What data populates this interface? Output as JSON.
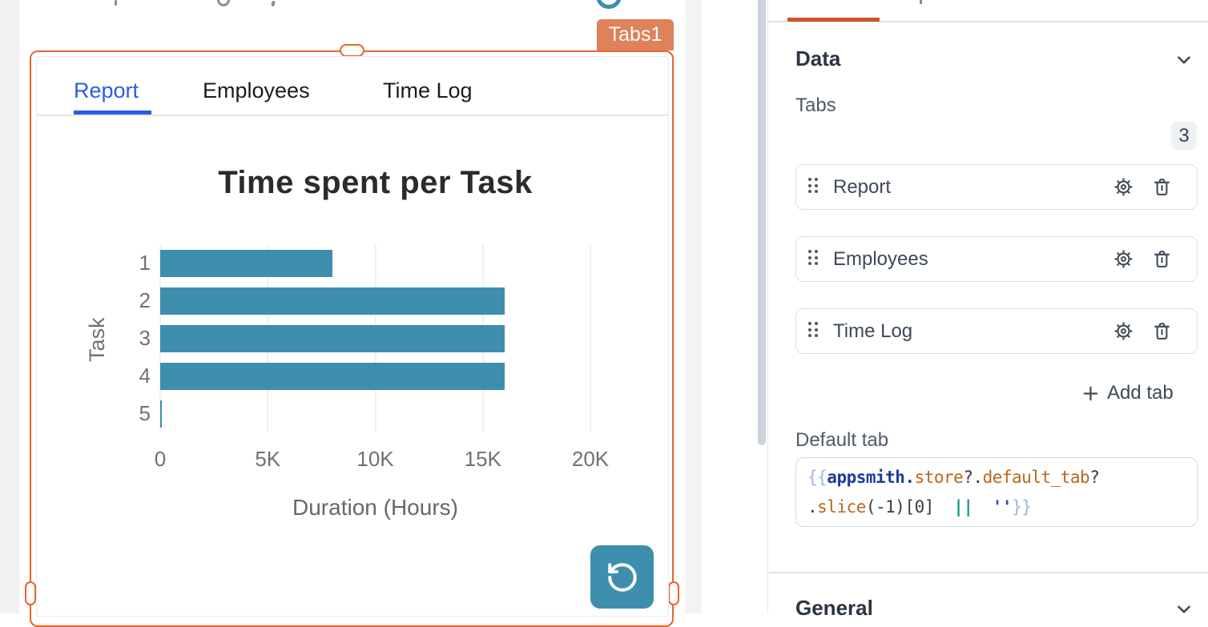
{
  "colors": {
    "accent_orange": "#E7642F",
    "badge_orange": "#DF8159",
    "underline_orange": "#D05425",
    "tab_blue": "#2B5CE6",
    "bar_teal": "#3D8FAD"
  },
  "canvas": {
    "widget_badge": "Tabs1",
    "widget_tabs": [
      "Report",
      "Employees",
      "Time Log"
    ],
    "active_widget_tab": "Report"
  },
  "chart_data": {
    "type": "bar",
    "orientation": "horizontal",
    "title": "Time spent per Task",
    "categories": [
      "1",
      "2",
      "3",
      "4",
      "5"
    ],
    "values": [
      8000,
      16000,
      16000,
      16000,
      75
    ],
    "xlabel": "Duration (Hours)",
    "ylabel": "Task",
    "xlim": [
      0,
      20000
    ],
    "x_ticks": [
      "0",
      "5K",
      "10K",
      "15K",
      "20K"
    ],
    "grid": "vertical",
    "legend": "none",
    "bar_color": "#3D8FAD"
  },
  "property_pane": {
    "data_section": {
      "heading": "Data",
      "tabs_label": "Tabs",
      "count_badge": "3",
      "tab_items": [
        "Report",
        "Employees",
        "Time Log"
      ],
      "add_tab_label": "Add tab",
      "default_tab_label": "Default tab",
      "code": {
        "full": "{{appsmith.store?.default_tab?.slice(-1)[0] || ''}}",
        "lines": [
          [
            {
              "t": "{{",
              "c": "brace"
            },
            {
              "t": "appsmith.",
              "c": "entity"
            },
            {
              "t": "store",
              "c": "func"
            },
            {
              "t": "?.",
              "c": "plain"
            },
            {
              "t": "default_tab",
              "c": "func"
            },
            {
              "t": "?",
              "c": "plain"
            }
          ],
          [
            {
              "t": ".",
              "c": "plain"
            },
            {
              "t": "slice",
              "c": "func"
            },
            {
              "t": "(-1)[0]",
              "c": "plain"
            },
            {
              "t": "  ",
              "c": "plain"
            },
            {
              "t": "||",
              "c": "op"
            },
            {
              "t": "  ",
              "c": "plain"
            },
            {
              "t": "''",
              "c": "string"
            },
            {
              "t": "}}",
              "c": "brace"
            }
          ]
        ]
      }
    },
    "general_section": {
      "heading": "General"
    }
  }
}
